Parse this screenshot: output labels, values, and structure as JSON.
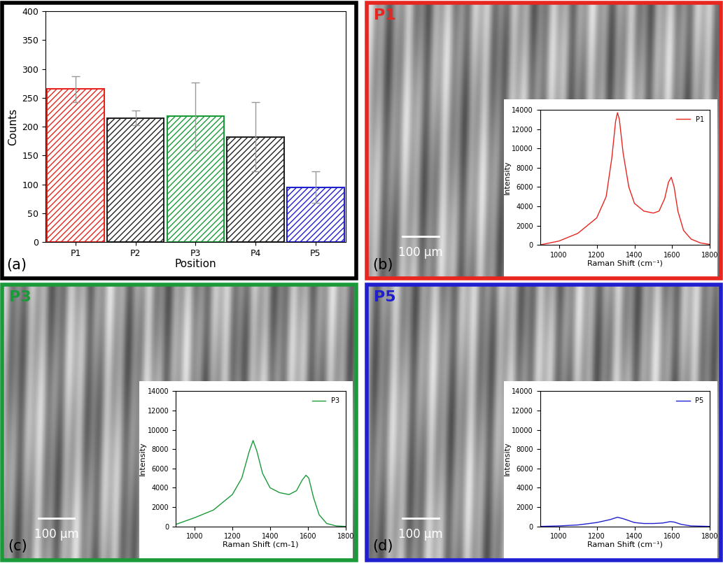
{
  "chart_data": [
    {
      "type": "bar",
      "annotations": [
        "(a)"
      ],
      "x_label": "Position",
      "y_label": "Counts",
      "categories": [
        "P1",
        "P2",
        "P3",
        "P4",
        "P5"
      ],
      "values": [
        265,
        215,
        218,
        182,
        95
      ],
      "errors": [
        23,
        13,
        59,
        60,
        27
      ],
      "colors": [
        "#e8251f",
        "#222222",
        "#1a9a38",
        "#222222",
        "#1f1fd0"
      ],
      "ylim": [
        0,
        400
      ],
      "yticks": [
        0,
        50,
        100,
        150,
        200,
        250,
        300,
        350,
        400
      ]
    },
    {
      "type": "line",
      "title": "P1",
      "annotations": [
        "(b)",
        "100 µm"
      ],
      "x_label": "Raman Shift (cm⁻¹)",
      "y_label": "Intensity",
      "legend": "upper right",
      "x": [
        900,
        1000,
        1100,
        1200,
        1250,
        1280,
        1300,
        1310,
        1320,
        1340,
        1370,
        1400,
        1450,
        1500,
        1530,
        1560,
        1580,
        1595,
        1610,
        1630,
        1660,
        1700,
        1750,
        1800
      ],
      "series": [
        {
          "name": "P1",
          "color": "#e8251f",
          "values": [
            0,
            400,
            1200,
            2800,
            5000,
            9000,
            12800,
            13700,
            13000,
            9500,
            6000,
            4300,
            3500,
            3300,
            3500,
            4800,
            6500,
            7000,
            6000,
            3500,
            1500,
            600,
            200,
            50
          ]
        }
      ],
      "xlim": [
        900,
        1800
      ],
      "xticks": [
        1000,
        1200,
        1400,
        1600,
        1800
      ],
      "ylim": [
        0,
        14000
      ],
      "yticks": [
        0,
        2000,
        4000,
        6000,
        8000,
        10000,
        12000,
        14000
      ]
    },
    {
      "type": "line",
      "title": "P3",
      "annotations": [
        "(c)",
        "100 µm"
      ],
      "x_label": "Raman Shift (cm-1)",
      "y_label": "Intensity",
      "legend": "upper right",
      "x": [
        900,
        1000,
        1100,
        1200,
        1250,
        1290,
        1310,
        1330,
        1360,
        1400,
        1450,
        1500,
        1540,
        1570,
        1590,
        1605,
        1630,
        1660,
        1700,
        1750,
        1800
      ],
      "series": [
        {
          "name": "P3",
          "color": "#1a9a38",
          "values": [
            200,
            900,
            1700,
            3300,
            5000,
            7800,
            8900,
            7800,
            5500,
            4000,
            3500,
            3300,
            3700,
            4800,
            5300,
            5000,
            3000,
            1200,
            300,
            50,
            0
          ]
        }
      ],
      "xlim": [
        900,
        1800
      ],
      "xticks": [
        1000,
        1200,
        1400,
        1600,
        1800
      ],
      "ylim": [
        0,
        14000
      ],
      "yticks": [
        0,
        2000,
        4000,
        6000,
        8000,
        10000,
        12000,
        14000
      ]
    },
    {
      "type": "line",
      "title": "P5",
      "annotations": [
        "(d)",
        "100 µm"
      ],
      "x_label": "Raman Shift (cm⁻¹)",
      "y_label": "Intensity",
      "legend": "upper right",
      "x": [
        900,
        1000,
        1100,
        1200,
        1270,
        1310,
        1340,
        1400,
        1450,
        1500,
        1550,
        1590,
        1610,
        1650,
        1700,
        1800
      ],
      "series": [
        {
          "name": "P5",
          "color": "#1f1fd0",
          "values": [
            0,
            50,
            150,
            400,
            700,
            950,
            800,
            400,
            300,
            300,
            350,
            500,
            450,
            200,
            50,
            0
          ]
        }
      ],
      "xlim": [
        900,
        1800
      ],
      "xticks": [
        1000,
        1200,
        1400,
        1600,
        1800
      ],
      "ylim": [
        0,
        14000
      ],
      "yticks": [
        0,
        2000,
        4000,
        6000,
        8000,
        10000,
        12000,
        14000
      ]
    }
  ]
}
